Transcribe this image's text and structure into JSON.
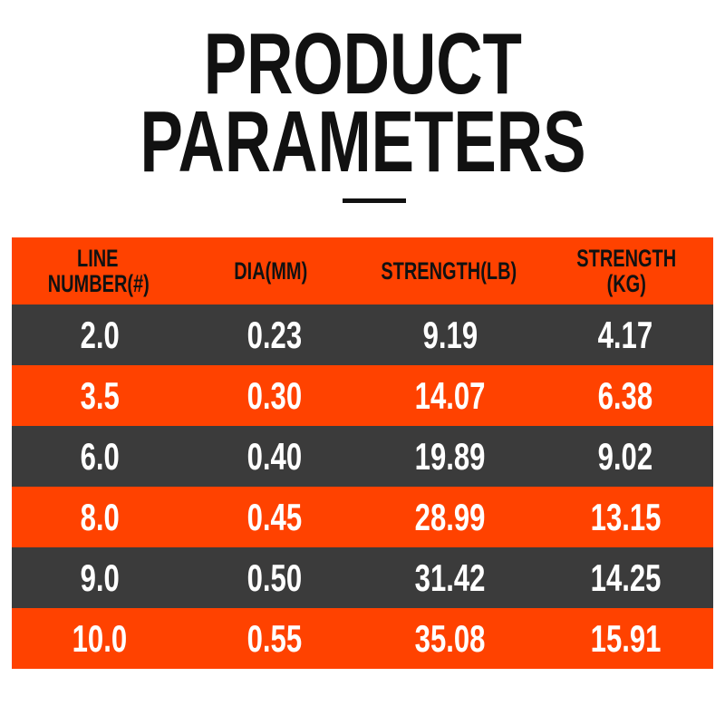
{
  "header": {
    "title": [
      "PRODUCT",
      "PARAMETERS"
    ]
  },
  "table": {
    "columns": [
      [
        "LINE",
        "NUMBER(#)"
      ],
      [
        "DIA(MM)"
      ],
      [
        "STRENGTH(LB)"
      ],
      [
        "STRENGTH",
        "(KG)"
      ]
    ],
    "rows": [
      [
        "2.0",
        "0.23",
        "9.19",
        "4.17"
      ],
      [
        "3.5",
        "0.30",
        "14.07",
        "6.38"
      ],
      [
        "6.0",
        "0.40",
        "19.89",
        "9.02"
      ],
      [
        "8.0",
        "0.45",
        "28.99",
        "13.15"
      ],
      [
        "9.0",
        "0.50",
        "31.42",
        "14.25"
      ],
      [
        "10.0",
        "0.55",
        "35.08",
        "15.91"
      ]
    ]
  }
}
